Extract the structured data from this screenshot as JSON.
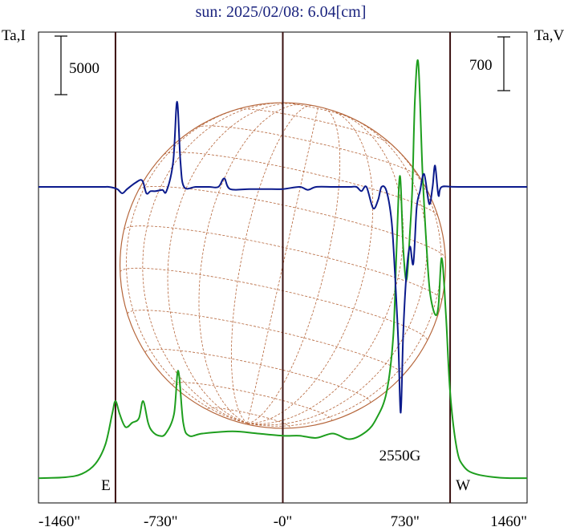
{
  "chart_data": {
    "type": "line",
    "title": "sun: 2025/02/08: 6.04[cm]",
    "left_axis_label": "Ta,I",
    "right_axis_label": "Ta,V",
    "left_scale_label": "5000",
    "right_scale_label": "700",
    "x_tick_labels": [
      "-1460\"",
      "-730\"",
      "-0\"",
      "730\"",
      "1460\""
    ],
    "x_ticks": [
      -1460,
      -730,
      0,
      730,
      1460
    ],
    "xlim": [
      -1460,
      1460
    ],
    "limb_markers": [
      {
        "label": "E",
        "x": -1000
      },
      {
        "label": "W",
        "x": 1000
      }
    ],
    "vertical_lines": [
      -1000,
      0,
      1000
    ],
    "annotation": {
      "text": "2550G",
      "x": 700
    },
    "solar_disk": {
      "radius_arcsec": 973,
      "color": "#b5653a"
    },
    "series": [
      {
        "axis": "left",
        "color": "#1e9e1e",
        "points": [
          [
            -1460,
            2.2
          ],
          [
            -1300,
            2.4
          ],
          [
            -1200,
            3.2
          ],
          [
            -1120,
            5.5
          ],
          [
            -1060,
            10
          ],
          [
            -1020,
            17
          ],
          [
            -1000,
            20
          ],
          [
            -975,
            17
          ],
          [
            -940,
            14
          ],
          [
            -900,
            15
          ],
          [
            -860,
            16
          ],
          [
            -835,
            20
          ],
          [
            -805,
            15
          ],
          [
            -780,
            13
          ],
          [
            -740,
            12
          ],
          [
            -700,
            12.5
          ],
          [
            -650,
            17
          ],
          [
            -625,
            27
          ],
          [
            -595,
            15
          ],
          [
            -560,
            12
          ],
          [
            -480,
            12.5
          ],
          [
            -300,
            13
          ],
          [
            -150,
            12.5
          ],
          [
            0,
            12
          ],
          [
            100,
            12
          ],
          [
            200,
            11.5
          ],
          [
            300,
            12.5
          ],
          [
            400,
            11.2
          ],
          [
            500,
            13
          ],
          [
            560,
            16
          ],
          [
            620,
            22
          ],
          [
            660,
            35
          ],
          [
            680,
            55
          ],
          [
            700,
            72
          ],
          [
            720,
            55
          ],
          [
            740,
            48
          ],
          [
            760,
            59
          ],
          [
            775,
            70
          ],
          [
            790,
            90
          ],
          [
            810,
            98
          ],
          [
            835,
            73
          ],
          [
            860,
            55
          ],
          [
            880,
            45
          ],
          [
            910,
            40
          ],
          [
            930,
            42
          ],
          [
            950,
            53
          ],
          [
            975,
            40
          ],
          [
            1000,
            22
          ],
          [
            1040,
            9
          ],
          [
            1080,
            5
          ],
          [
            1150,
            3.2
          ],
          [
            1300,
            2.3
          ],
          [
            1460,
            2.2
          ]
        ]
      },
      {
        "axis": "right",
        "color": "#0b1a8c",
        "points": [
          [
            -1460,
            58
          ],
          [
            -1100,
            58
          ],
          [
            -1040,
            58
          ],
          [
            -990,
            57.5
          ],
          [
            -960,
            56.5
          ],
          [
            -930,
            57.5
          ],
          [
            -880,
            59
          ],
          [
            -840,
            59.5
          ],
          [
            -815,
            56.5
          ],
          [
            -790,
            57
          ],
          [
            -760,
            57
          ],
          [
            -720,
            57.3
          ],
          [
            -695,
            57
          ],
          [
            -655,
            64
          ],
          [
            -632,
            78
          ],
          [
            -612,
            64
          ],
          [
            -590,
            58
          ],
          [
            -520,
            58
          ],
          [
            -440,
            58
          ],
          [
            -385,
            58
          ],
          [
            -350,
            60
          ],
          [
            -315,
            57.5
          ],
          [
            -200,
            57.5
          ],
          [
            -100,
            57.5
          ],
          [
            0,
            57.5
          ],
          [
            100,
            58
          ],
          [
            150,
            57.3
          ],
          [
            200,
            58
          ],
          [
            300,
            58
          ],
          [
            400,
            58
          ],
          [
            440,
            58
          ],
          [
            470,
            57
          ],
          [
            500,
            58
          ],
          [
            540,
            53
          ],
          [
            570,
            55
          ],
          [
            590,
            58
          ],
          [
            620,
            57
          ],
          [
            650,
            50
          ],
          [
            670,
            38
          ],
          [
            690,
            22
          ],
          [
            705,
            5
          ],
          [
            720,
            24
          ],
          [
            740,
            38
          ],
          [
            760,
            44
          ],
          [
            780,
            40
          ],
          [
            800,
            53
          ],
          [
            820,
            57
          ],
          [
            845,
            61
          ],
          [
            875,
            54
          ],
          [
            895,
            58
          ],
          [
            910,
            63
          ],
          [
            930,
            56
          ],
          [
            950,
            58
          ],
          [
            1050,
            58
          ],
          [
            1460,
            58
          ]
        ]
      }
    ]
  }
}
